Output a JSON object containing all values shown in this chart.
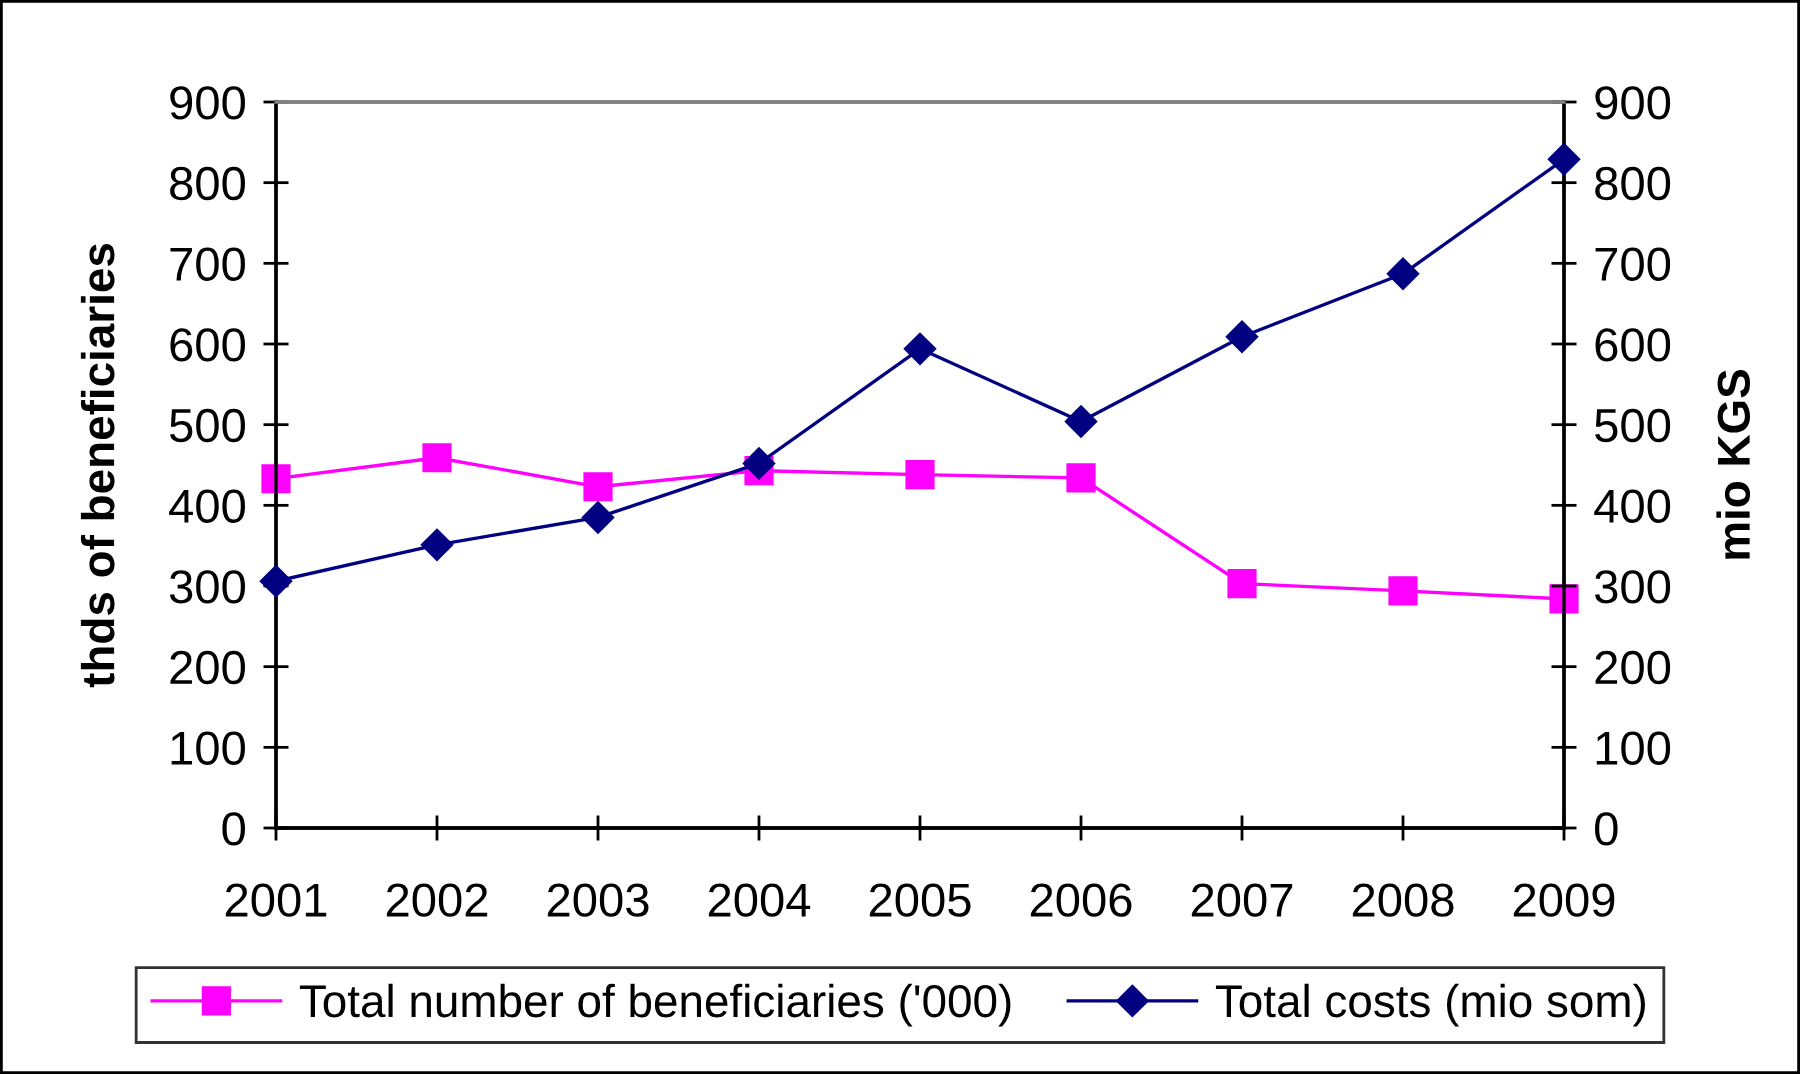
{
  "chart_data": {
    "type": "line",
    "categories": [
      "2001",
      "2002",
      "2003",
      "2004",
      "2005",
      "2006",
      "2007",
      "2008",
      "2009"
    ],
    "series": [
      {
        "name": "Total number of beneficiaries ('000)",
        "color": "#ff00ff",
        "marker": "square",
        "values": [
          433,
          459,
          423,
          443,
          438,
          434,
          303,
          294,
          284
        ]
      },
      {
        "name": "Total costs (mio som)",
        "color": "#000080",
        "marker": "diamond",
        "axis": "y2",
        "values": [
          306,
          351,
          385,
          452,
          594,
          504,
          609,
          687,
          829
        ]
      }
    ],
    "ylabel": "thds of beneficiaries",
    "y2label": "mio KGS",
    "ylim": [
      0,
      900
    ],
    "yticks": [
      0,
      100,
      200,
      300,
      400,
      500,
      600,
      700,
      800,
      900
    ],
    "y2lim": [
      0,
      900
    ],
    "y2ticks": [
      0,
      100,
      200,
      300,
      400,
      500,
      600,
      700,
      800,
      900
    ],
    "legend": "bottom",
    "line_style": "solid"
  }
}
